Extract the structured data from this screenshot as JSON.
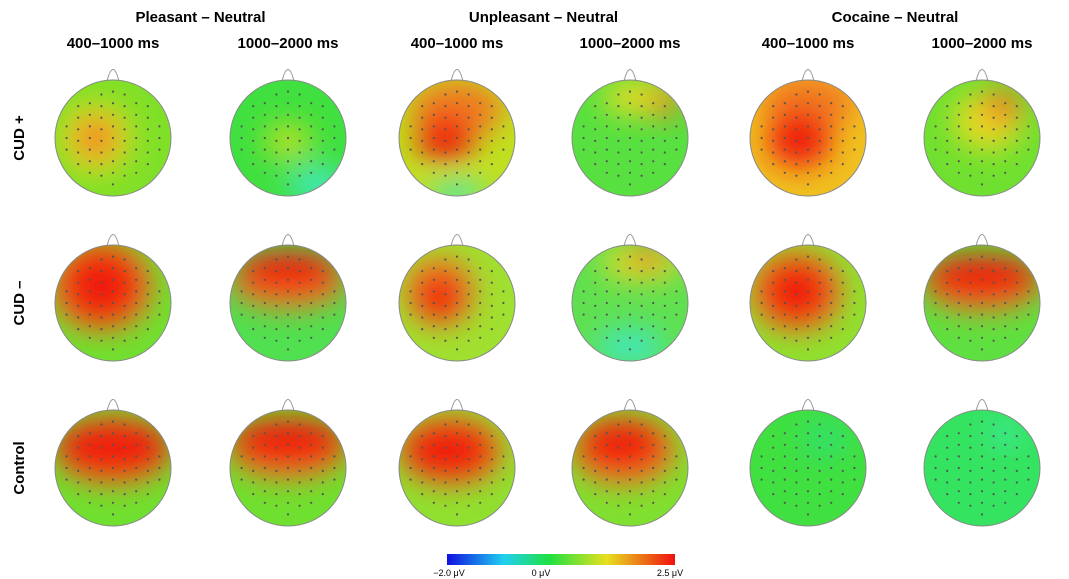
{
  "header": {
    "groups": [
      {
        "title": "Pleasant – Neutral",
        "windows": [
          "400–1000 ms",
          "1000–2000 ms"
        ]
      },
      {
        "title": "Unpleasant – Neutral",
        "windows": [
          "400–1000 ms",
          "1000–2000 ms"
        ]
      },
      {
        "title": "Cocaine – Neutral",
        "windows": [
          "400–1000 ms",
          "1000–2000 ms"
        ]
      }
    ]
  },
  "rows": [
    "CUD +",
    "CUD –",
    "Control"
  ],
  "colorbar": {
    "labels": [
      "−2.0 μV",
      "0 μV",
      "2.5 μV"
    ]
  }
}
